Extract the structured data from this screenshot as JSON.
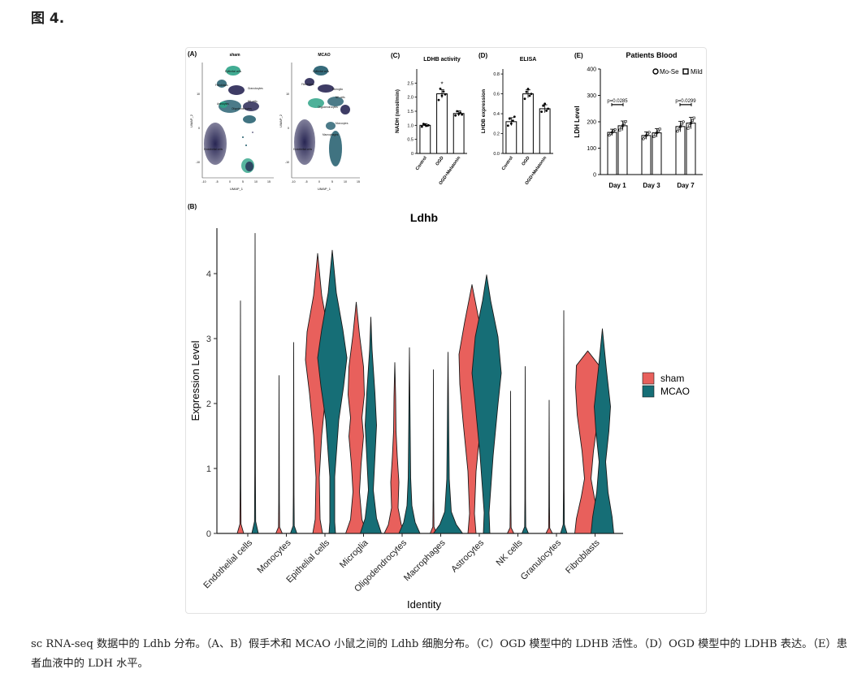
{
  "figure_heading": "图 4.",
  "caption": "sc RNA-seq 数据中的 Ldhb 分布。（A、B）假手术和 MCAO 小鼠之间的 Ldhb 细胞分布。（C）OGD 模型中的 LDHB 活性。（D）OGD 模型中的 LDHB 表达。（E）患者血液中的 LDH 水平。",
  "panel_labels": {
    "a": "(A)",
    "b": "(B)",
    "c": "(C)",
    "d": "(D)",
    "e": "(E)"
  },
  "panel_a": {
    "titles": [
      "sham",
      "MCAO"
    ],
    "x_axis_label": "UMAP_1",
    "y_axis_label": "UMAP_2",
    "x_ticks": [
      "-10",
      "-5",
      "0",
      "5",
      "10",
      "15"
    ],
    "y_ticks": [
      "10",
      "0",
      "-10"
    ],
    "cell_labels": [
      "Epithelial cells",
      "Fibroblasts",
      "Granulocytes",
      "Astrocytes",
      "Oligodendrocytes",
      "NK cells",
      "Monocytes",
      "Macrophages",
      "Microglia",
      "Endothelial cells"
    ],
    "colors": {
      "high": "#2ea387",
      "mid": "#1f5a6b",
      "low": "#1c1a4a"
    }
  },
  "chart_data": [
    {
      "panel": "C",
      "type": "bar",
      "title": "LDHB activity",
      "ylabel": "NADH (nmol/min)",
      "categories": [
        "Control",
        "OGD",
        "OGD+Melatonin"
      ],
      "values": [
        1.0,
        2.12,
        1.42
      ],
      "errors": [
        0.06,
        0.15,
        0.09
      ],
      "points": [
        [
          0.95,
          1.05,
          1.02,
          0.98,
          1.0
        ],
        [
          1.9,
          2.3,
          2.05,
          2.2,
          2.1
        ],
        [
          1.35,
          1.5,
          1.4,
          1.45,
          1.38
        ]
      ],
      "annotations": [
        "*"
      ],
      "ylim": [
        0,
        3.0
      ],
      "yticks": [
        0,
        0.5,
        1.0,
        1.5,
        2.0,
        2.5
      ]
    },
    {
      "panel": "D",
      "type": "bar",
      "title": "ELISA",
      "ylabel": "LHDB expression",
      "categories": [
        "Control",
        "OGD",
        "OGD+Melatonin"
      ],
      "values": [
        0.32,
        0.6,
        0.45
      ],
      "errors": [
        0.04,
        0.04,
        0.04
      ],
      "points": [
        [
          0.28,
          0.35,
          0.3,
          0.33,
          0.37
        ],
        [
          0.55,
          0.62,
          0.65,
          0.58,
          0.6
        ],
        [
          0.42,
          0.48,
          0.5,
          0.43,
          0.45
        ]
      ],
      "ylim": [
        0,
        0.85
      ],
      "yticks": [
        0.0,
        0.2,
        0.4,
        0.6,
        0.8
      ]
    },
    {
      "panel": "E",
      "type": "bar",
      "title": "Patients Blood",
      "ylabel": "LDH Level",
      "categories": [
        "Day 1",
        "Day 3",
        "Day 7"
      ],
      "series": [
        {
          "name": "Mo-Se",
          "values": [
            160,
            148,
            182
          ],
          "marker": "circle"
        },
        {
          "name": "Mild",
          "values": [
            185,
            158,
            195
          ],
          "marker": "square"
        }
      ],
      "errors": [
        [
          12,
          14,
          20
        ],
        [
          18,
          16,
          22
        ]
      ],
      "annotations": [
        "p=0.0285",
        "p=0.0299"
      ],
      "ylim": [
        0,
        400
      ],
      "yticks": [
        0,
        100,
        200,
        300,
        400
      ],
      "legend": "top-right"
    },
    {
      "panel": "B",
      "type": "violin",
      "title": "Ldhb",
      "xlabel": "Identity",
      "ylabel": "Expression Level",
      "categories": [
        "Endothelial cells",
        "Monocytes",
        "Epithelial cells",
        "Microglia",
        "Oligodendrocytes",
        "Macrophages",
        "Astrocytes",
        "NK cells",
        "Granulocytes",
        "Fibroblasts"
      ],
      "series": [
        {
          "name": "sham",
          "color": "#e8605c",
          "max": [
            3.58,
            2.43,
            4.31,
            3.56,
            2.63,
            2.52,
            3.83,
            2.19,
            2.05,
            2.81
          ]
        },
        {
          "name": "MCAO",
          "color": "#166e76",
          "max": [
            4.62,
            2.94,
            4.36,
            3.33,
            2.86,
            2.79,
            3.98,
            2.57,
            3.43,
            3.15
          ]
        }
      ],
      "ylim": [
        0,
        4.7
      ],
      "yticks": [
        0,
        1,
        2,
        3,
        4
      ],
      "legend": "right"
    }
  ]
}
